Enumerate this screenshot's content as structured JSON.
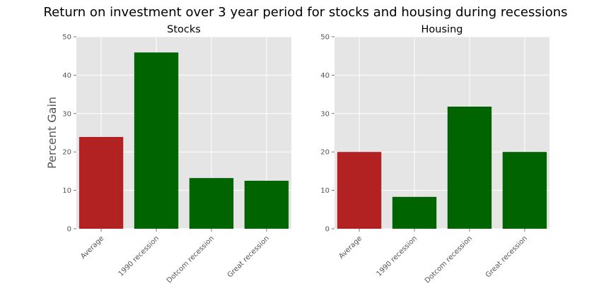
{
  "figure": {
    "title": "Return on investment over 3 year period for stocks and housing during recessions"
  },
  "colors": {
    "plot_background": "#e5e5e5",
    "grid": "#ffffff",
    "average_bar": "#b22222",
    "recession_bar": "#006400"
  },
  "chart_data": [
    {
      "type": "bar",
      "title": "Stocks",
      "xlabel": "",
      "ylabel": "Percent Gain",
      "categories": [
        "Average",
        "1990 recession",
        "Dotcom recession",
        "Great recession"
      ],
      "values": [
        23.9,
        45.9,
        13.2,
        12.5
      ],
      "bar_colors": [
        "#b22222",
        "#006400",
        "#006400",
        "#006400"
      ],
      "ylim": [
        0,
        50
      ],
      "yticks": [
        "0",
        "10",
        "20",
        "30",
        "40",
        "50"
      ],
      "grid": true
    },
    {
      "type": "bar",
      "title": "Housing",
      "xlabel": "",
      "ylabel": "",
      "categories": [
        "Average",
        "1990 recession",
        "Dotcom recession",
        "Great recession"
      ],
      "values": [
        20.0,
        8.3,
        31.8,
        20.0
      ],
      "bar_colors": [
        "#b22222",
        "#006400",
        "#006400",
        "#006400"
      ],
      "ylim": [
        0,
        50
      ],
      "yticks": [
        "0",
        "10",
        "20",
        "30",
        "40",
        "50"
      ],
      "grid": true
    }
  ]
}
